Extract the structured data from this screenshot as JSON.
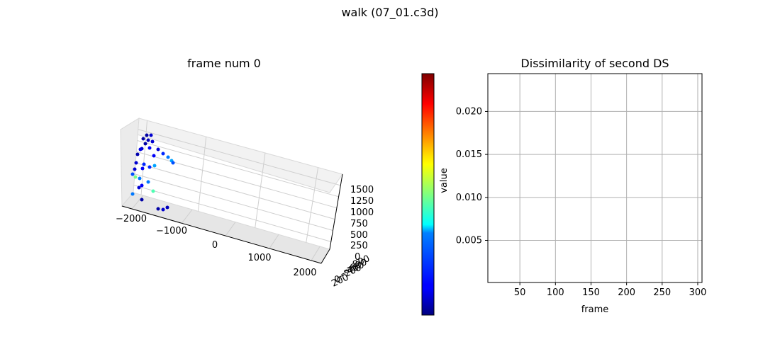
{
  "figure": {
    "suptitle": "walk (07_01.c3d)"
  },
  "chart_data": [
    {
      "type": "scatter3d",
      "title": "frame num 0",
      "xlabel": "",
      "ylabel": "",
      "zlabel": "",
      "x_ticks": [
        "−2000",
        "−1000",
        "0",
        "1000",
        "2000"
      ],
      "y_ticks": [
        "200",
        "0",
        "−200",
        "−400",
        "−600",
        "−800"
      ],
      "z_ticks": [
        "0",
        "250",
        "500",
        "750",
        "1000",
        "1250",
        "1500"
      ],
      "grid": true,
      "colormap": "jet",
      "points": [
        {
          "v": 0.001
        },
        {
          "v": 0.002
        },
        {
          "v": 0.001
        },
        {
          "v": 0.0015
        },
        {
          "v": 0.002
        },
        {
          "v": 0.001
        },
        {
          "v": 0.002
        },
        {
          "v": 0.0025
        },
        {
          "v": 0.003
        },
        {
          "v": 0.002
        },
        {
          "v": 0.0012
        },
        {
          "v": 0.004
        },
        {
          "v": 0.006
        },
        {
          "v": 0.007
        },
        {
          "v": 0.003
        },
        {
          "v": 0.002
        },
        {
          "v": 0.004
        },
        {
          "v": 0.005
        },
        {
          "v": 0.002
        },
        {
          "v": 0.003
        },
        {
          "v": 0.004
        },
        {
          "v": 0.012
        },
        {
          "v": 0.006
        },
        {
          "v": 0.005
        },
        {
          "v": 0.007
        },
        {
          "v": 0.006
        },
        {
          "v": 0.003
        },
        {
          "v": 0.002
        },
        {
          "v": 0.011
        },
        {
          "v": 0.006
        },
        {
          "v": 0.001
        },
        {
          "v": 0.0015
        },
        {
          "v": 0.002
        },
        {
          "v": 0.001
        }
      ]
    },
    {
      "type": "colorbar",
      "label": "value",
      "colormap": "jet",
      "range": [
        0.0001,
        0.0243
      ]
    },
    {
      "type": "line",
      "title": "Dissimilarity of second DS",
      "xlabel": "frame",
      "ylabel": "",
      "x_ticks": [
        50,
        100,
        150,
        200,
        250,
        300
      ],
      "y_ticks": [
        0.005,
        0.01,
        0.015,
        0.02
      ],
      "y_tick_labels": [
        "0.005",
        "0.010",
        "0.015",
        "0.020"
      ],
      "xlim": [
        5,
        306
      ],
      "ylim": [
        0.0001,
        0.0244
      ],
      "grid": true,
      "series": []
    }
  ]
}
